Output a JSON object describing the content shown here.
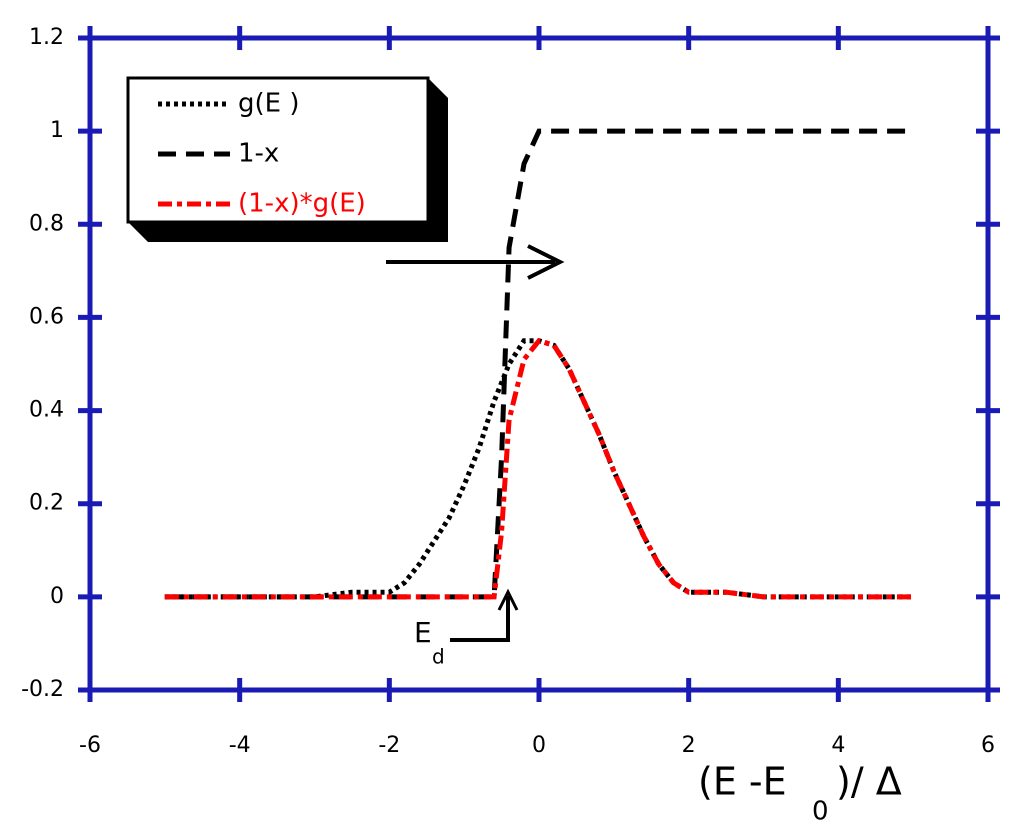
{
  "chart_data": {
    "type": "line",
    "x": [
      -5,
      -4,
      -3,
      -2.5,
      -2,
      -1.8,
      -1.6,
      -1.4,
      -1.2,
      -1,
      -0.8,
      -0.6,
      -0.5,
      -0.4,
      -0.2,
      0,
      0.2,
      0.4,
      0.6,
      0.8,
      1,
      1.2,
      1.4,
      1.6,
      1.8,
      2,
      2.5,
      3,
      4,
      5
    ],
    "series": [
      {
        "name": "g(E )",
        "color": "#000000",
        "dash": "dotted",
        "values": [
          0,
          0,
          0,
          0.01,
          0.01,
          0.03,
          0.07,
          0.12,
          0.17,
          0.24,
          0.32,
          0.42,
          0.46,
          0.5,
          0.55,
          0.55,
          0.54,
          0.49,
          0.42,
          0.35,
          0.27,
          0.2,
          0.13,
          0.07,
          0.03,
          0.01,
          0.01,
          0,
          0,
          0
        ]
      },
      {
        "name": "1-x",
        "color": "#000000",
        "dash": "dashed",
        "values": [
          0,
          0,
          0,
          0,
          0,
          0,
          0,
          0,
          0,
          0,
          0,
          0,
          0.3,
          0.75,
          0.93,
          1,
          1,
          1,
          1,
          1,
          1,
          1,
          1,
          1,
          1,
          1,
          1,
          1,
          1,
          1
        ]
      },
      {
        "name": "(1-x)*g(E)",
        "color": "#ff0000",
        "dash": "dashdot",
        "values": [
          0,
          0,
          0,
          0,
          0,
          0,
          0,
          0,
          0,
          0,
          0,
          0,
          0.14,
          0.38,
          0.51,
          0.55,
          0.54,
          0.49,
          0.42,
          0.35,
          0.27,
          0.2,
          0.13,
          0.07,
          0.03,
          0.01,
          0.01,
          0,
          0,
          0
        ]
      }
    ],
    "xlim": [
      -6,
      6
    ],
    "xticks": [
      -6,
      -4,
      -2,
      0,
      2,
      4,
      6
    ],
    "ylim": [
      -0.2,
      1.2
    ],
    "yticks": [
      -0.2,
      0,
      0.2,
      0.4,
      0.6,
      0.8,
      1,
      1.2
    ],
    "xlabel": {
      "main": "(E -E",
      "sub": "0",
      "tail": ")/ Δ"
    },
    "annotation": {
      "main": "E",
      "sub": "d"
    },
    "axis_color": "#1a1ab4"
  }
}
